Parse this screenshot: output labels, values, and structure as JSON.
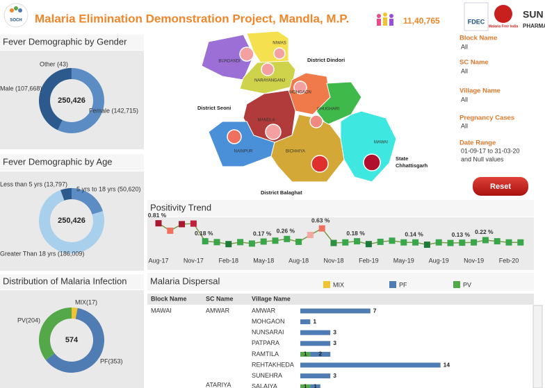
{
  "header": {
    "logo": "SOCH",
    "title": "Malaria Elimination Demonstration Project, Mandla, M.P.",
    "count": "11,40,765",
    "logos": [
      "FDEC",
      "Malaria Free India",
      "SUN",
      "PHARMA"
    ]
  },
  "map": {
    "regions": [
      "BIJADANDI",
      "NIWAS",
      "NARAYANGANJ",
      "MOHGAON",
      "GHUGHARI",
      "MANDLA",
      "NAINPUR",
      "BICHHIYA",
      "MAWAI"
    ],
    "districts": [
      "District Dindori",
      "District Seoni",
      "District Balaghat",
      "State",
      "Chhattisgarh"
    ]
  },
  "filters": [
    {
      "label": "Block Name",
      "values": [
        "All"
      ]
    },
    {
      "label": "SC Name",
      "values": [
        "All"
      ]
    },
    {
      "label": "Village Name",
      "values": [
        "All"
      ]
    },
    {
      "label": "Pregnancy Cases",
      "values": [
        "All"
      ]
    },
    {
      "label": "Date Range",
      "values": [
        "01-09-17 to 31-03-20",
        "and Null values"
      ]
    }
  ],
  "reset": "Reset",
  "chart_data": [
    {
      "type": "donut",
      "title": "Fever Demographic by Gender",
      "total_label": "250,426",
      "categories": [
        "Male",
        "Female",
        "Other"
      ],
      "values": [
        107668,
        142715,
        43
      ],
      "value_labels": [
        "Male (107,668)",
        "Female (142,715)",
        "Other (43)"
      ],
      "colors": [
        "#2d5a8c",
        "#5b8cc4",
        "#9fc3e6"
      ]
    },
    {
      "type": "donut",
      "title": "Fever Demographic by Age",
      "total_label": "250,426",
      "categories": [
        "Less than 5 yrs",
        "5 yrs to 18 yrs",
        "Greater Than 18 yrs"
      ],
      "values": [
        13797,
        50620,
        186009
      ],
      "value_labels": [
        "Less than 5 yrs (13,797)",
        "5 yrs to 18 yrs (50,620)",
        "Greater Than 18 yrs (186,009)"
      ],
      "colors": [
        "#2d5a8c",
        "#5b8cc4",
        "#a8cfec"
      ]
    },
    {
      "type": "donut",
      "title": "Distribution of Malaria Infection",
      "total_label": "574",
      "categories": [
        "MIX",
        "PF",
        "PV"
      ],
      "values": [
        17,
        353,
        204
      ],
      "value_labels": [
        "MIX(17)",
        "PF(353)",
        "PV(204)"
      ],
      "colors": [
        "#f0c330",
        "#4f7cb3",
        "#55a84a"
      ]
    },
    {
      "type": "line",
      "title": "Positivity Trend",
      "categories": [
        "Aug-17",
        null,
        null,
        "Nov-17",
        null,
        null,
        "Feb-18",
        null,
        null,
        "May-18",
        null,
        null,
        "Aug-18",
        null,
        null,
        "Nov-18",
        null,
        null,
        "Feb-19",
        null,
        null,
        "May-19",
        null,
        null,
        "Aug-19",
        null,
        null,
        "Nov-19",
        null,
        null,
        "Feb-20",
        null
      ],
      "values": [
        0.81,
        0.55,
        0.78,
        0.8,
        0.18,
        0.15,
        0.08,
        0.15,
        0.1,
        0.17,
        0.2,
        0.26,
        0.16,
        0.4,
        0.63,
        0.12,
        0.14,
        0.18,
        0.08,
        0.16,
        0.2,
        0.14,
        0.14,
        0.06,
        0.14,
        0.12,
        0.13,
        0.14,
        0.22,
        0.18,
        0.14,
        0.14
      ],
      "value_labels": [
        "0.81 %",
        null,
        null,
        null,
        "0.18 %",
        null,
        null,
        null,
        null,
        "0.17 %",
        null,
        "0.26 %",
        null,
        null,
        "0.63 %",
        null,
        null,
        "0.18 %",
        null,
        null,
        null,
        null,
        "0.14 %",
        null,
        null,
        null,
        "0.13 %",
        null,
        "0.22 %",
        null,
        null,
        null
      ],
      "point_colors": [
        "#a8182e",
        "#f07060",
        "#a8182e",
        "#c0203a",
        "#3aa64a",
        "#3aa64a",
        "#1f7a3a",
        "#3aa64a",
        "#3aa64a",
        "#3aa64a",
        "#3aa64a",
        "#3aa64a",
        "#3aa64a",
        "#f4a6a0",
        "#f07060",
        "#2f8f40",
        "#3aa64a",
        "#3aa64a",
        "#1f7a3a",
        "#3aa64a",
        "#3aa64a",
        "#3aa64a",
        "#3aa64a",
        "#1f7a3a",
        "#3aa64a",
        "#3aa64a",
        "#3aa64a",
        "#3aa64a",
        "#3aa64a",
        "#3aa64a",
        "#3aa64a",
        "#3aa64a"
      ],
      "color": "#7a9a4a",
      "ylim": [
        0,
        0.9
      ]
    },
    {
      "type": "hbar",
      "title": "Malaria Dispersal",
      "columns": [
        "Block Name",
        "SC Name",
        "Village Name"
      ],
      "block_names": [
        "MAWAI",
        null,
        null,
        null,
        null,
        null,
        null,
        null
      ],
      "sc_names": [
        "AMWAR",
        null,
        null,
        null,
        null,
        null,
        null,
        "ATARIYA"
      ],
      "categories": [
        "AMWAR",
        "MOHGAON",
        "NUNSARAI",
        "PATPARA",
        "RAMTILA",
        "REHTAKHEDA",
        "SUNEHRA",
        "SALAIYA"
      ],
      "series": [
        {
          "name": "MIX",
          "color": "#f0c330",
          "values": [
            null,
            null,
            null,
            null,
            null,
            null,
            null,
            null
          ]
        },
        {
          "name": "PF",
          "color": "#4f7cb3",
          "values": [
            7,
            1,
            3,
            3,
            2,
            14,
            3,
            1
          ]
        },
        {
          "name": "PV",
          "color": "#55a84a",
          "values": [
            null,
            null,
            null,
            null,
            1,
            null,
            null,
            1
          ]
        }
      ],
      "stack_order": [
        "PV",
        "PF",
        "MIX"
      ],
      "xlim": [
        0,
        15
      ]
    }
  ]
}
